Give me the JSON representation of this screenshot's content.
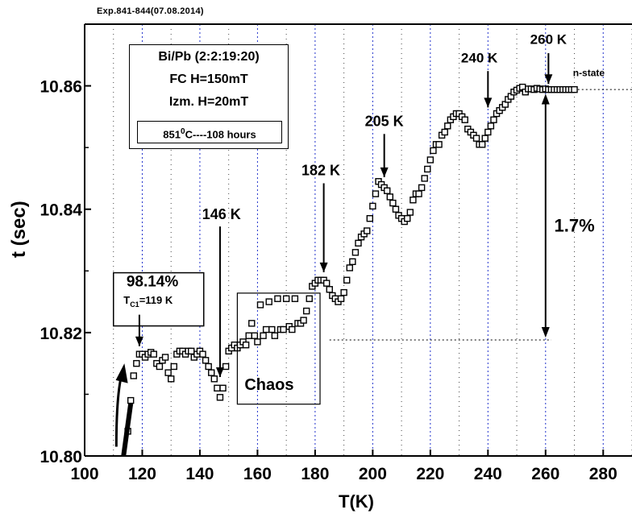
{
  "header": "Exp.841-844(07.08.2014)",
  "infobox": {
    "line1": "Bi/Pb (2:2:19:20)",
    "line2": "FC    H=150mT",
    "line3": "Izm.  H=20mT",
    "line4_pre": "851",
    "line4_sup": "0",
    "line4_post": "C----108 hours"
  },
  "annotations": {
    "percent": "98.14%",
    "tc_pre": "T",
    "tc_sub": "C1",
    "tc_post": "=119 K",
    "k146": "146 K",
    "k182": "182 K",
    "k205": "205 K",
    "k240": "240 K",
    "k260": "260 K",
    "nstate": "n-state",
    "chaos": "Chaos",
    "pct17": "1.7%"
  },
  "chart_data": {
    "type": "scatter",
    "title": "",
    "xlabel": "T(K)",
    "ylabel": "t (sec)",
    "xlim": [
      100,
      290
    ],
    "ylim": [
      10.8,
      10.87
    ],
    "xticks": [
      100,
      120,
      140,
      160,
      180,
      200,
      220,
      240,
      260,
      280
    ],
    "yticks": [
      10.8,
      10.82,
      10.84,
      10.86
    ],
    "ytick_labels": [
      "10.80",
      "10.82",
      "10.84",
      "10.86"
    ],
    "vertical_gridlines": [
      120,
      140,
      160,
      180,
      200,
      220,
      240,
      260,
      280
    ],
    "grid": "vertical dotted",
    "marker": "open square",
    "x": [
      115,
      116,
      117,
      118,
      119,
      120,
      121,
      122,
      123,
      124,
      125,
      126,
      127,
      128,
      129,
      130,
      131,
      132,
      133,
      134,
      135,
      136,
      137,
      138,
      139,
      140,
      141,
      142,
      143,
      144,
      145,
      146,
      147,
      148,
      149,
      150,
      151,
      152,
      153,
      154,
      155,
      156,
      157,
      158,
      159,
      160,
      161,
      162,
      163,
      164,
      165,
      166,
      167,
      168,
      169,
      170,
      171,
      172,
      173,
      174,
      175,
      176,
      177,
      178,
      179,
      180,
      181,
      182,
      183,
      184,
      185,
      186,
      187,
      188,
      189,
      190,
      191,
      192,
      193,
      194,
      195,
      196,
      197,
      198,
      199,
      200,
      201,
      202,
      203,
      204,
      205,
      206,
      207,
      208,
      209,
      210,
      211,
      212,
      213,
      214,
      215,
      216,
      217,
      218,
      219,
      220,
      221,
      222,
      223,
      224,
      225,
      226,
      227,
      228,
      229,
      230,
      231,
      232,
      233,
      234,
      235,
      236,
      237,
      238,
      239,
      240,
      241,
      242,
      243,
      244,
      245,
      246,
      247,
      248,
      249,
      250,
      251,
      252,
      253,
      254,
      255,
      256,
      257,
      258,
      259,
      260,
      261,
      262,
      263,
      264,
      265,
      266,
      267,
      268,
      269,
      270
    ],
    "y": [
      10.804,
      10.809,
      10.813,
      10.815,
      10.8165,
      10.8165,
      10.816,
      10.8165,
      10.8168,
      10.8165,
      10.815,
      10.8145,
      10.8155,
      10.816,
      10.8135,
      10.8125,
      10.8145,
      10.8165,
      10.817,
      10.817,
      10.8165,
      10.817,
      10.817,
      10.816,
      10.8165,
      10.817,
      10.8165,
      10.8155,
      10.8145,
      10.8135,
      10.8125,
      10.811,
      10.8095,
      10.811,
      10.8145,
      10.817,
      10.8175,
      10.818,
      10.8175,
      10.818,
      10.8185,
      10.818,
      10.8195,
      10.8215,
      10.8195,
      10.8185,
      10.8245,
      10.8195,
      10.8205,
      10.825,
      10.8205,
      10.8195,
      10.8255,
      10.8205,
      10.8205,
      10.8255,
      10.821,
      10.8205,
      10.8255,
      10.8215,
      10.8215,
      10.822,
      10.8235,
      10.8255,
      10.8275,
      10.828,
      10.8285,
      10.8285,
      10.8285,
      10.828,
      10.827,
      10.826,
      10.8255,
      10.825,
      10.8255,
      10.8265,
      10.8285,
      10.8305,
      10.8315,
      10.833,
      10.8345,
      10.8355,
      10.836,
      10.8365,
      10.8385,
      10.8405,
      10.8425,
      10.8445,
      10.844,
      10.8435,
      10.843,
      10.842,
      10.841,
      10.84,
      10.839,
      10.8385,
      10.838,
      10.8385,
      10.8395,
      10.8415,
      10.8425,
      10.8425,
      10.8435,
      10.845,
      10.8465,
      10.848,
      10.8495,
      10.8505,
      10.8505,
      10.852,
      10.8525,
      10.8535,
      10.8545,
      10.855,
      10.8555,
      10.8555,
      10.855,
      10.8545,
      10.853,
      10.8525,
      10.852,
      10.8515,
      10.8505,
      10.8505,
      10.8515,
      10.8525,
      10.8535,
      10.8545,
      10.8555,
      10.856,
      10.8565,
      10.857,
      10.8578,
      10.8583,
      10.859,
      10.8593,
      10.8596,
      10.8598,
      10.859,
      10.8595,
      10.8595,
      10.8594,
      10.8596,
      10.8595,
      10.8594,
      10.8595,
      10.8594,
      10.8594,
      10.8594,
      10.8594,
      10.8594,
      10.8594,
      10.8594,
      10.8594,
      10.8594,
      10.8594
    ]
  }
}
